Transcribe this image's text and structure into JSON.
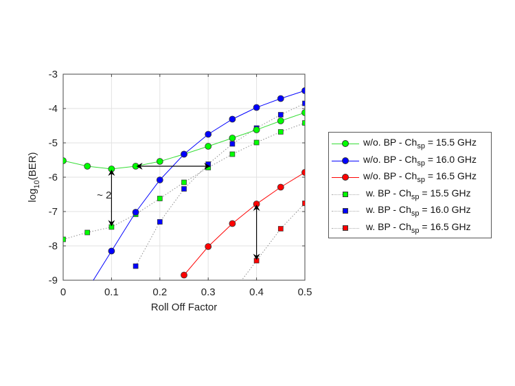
{
  "chart_data": {
    "type": "line",
    "title": "",
    "xlabel": "Roll Off Factor",
    "ylabel": "log10(BER)",
    "ylabel_main": "log",
    "ylabel_sub": "10",
    "ylabel_tail": "(BER)",
    "xlim": [
      0,
      0.5
    ],
    "ylim": [
      -9,
      -3
    ],
    "xticks": [
      "0",
      "0.1",
      "0.2",
      "0.3",
      "0.4",
      "0.5"
    ],
    "yticks": [
      "-3",
      "-4",
      "-5",
      "-6",
      "-7",
      "-8",
      "-9"
    ],
    "grid": true,
    "legend_position": "outside right",
    "series": [
      {
        "name": "w/o. BP - Chsp = 15.5 GHz",
        "label_pre": "w/o. BP - Ch",
        "label_sub": "sp",
        "label_post": " = 15.5 GHz",
        "color": "#00ff00",
        "line": "solid",
        "marker": "circle",
        "x": [
          0,
          0.05,
          0.1,
          0.15,
          0.2,
          0.25,
          0.3,
          0.35,
          0.4,
          0.45,
          0.5
        ],
        "y": [
          -5.52,
          -5.68,
          -5.76,
          -5.68,
          -5.54,
          -5.33,
          -5.1,
          -4.86,
          -4.62,
          -4.36,
          -4.12
        ]
      },
      {
        "name": "w/o. BP - Chsp = 16.0 GHz",
        "label_pre": "w/o. BP - Ch",
        "label_sub": "sp",
        "label_post": " = 16.0 GHz",
        "color": "#0000ff",
        "line": "solid",
        "marker": "circle",
        "x": [
          0.1,
          0.15,
          0.2,
          0.25,
          0.3,
          0.35,
          0.4,
          0.45,
          0.5
        ],
        "y": [
          -8.15,
          -7.02,
          -6.08,
          -5.33,
          -4.75,
          -4.31,
          -3.97,
          -3.71,
          -3.48
        ]
      },
      {
        "name": "w/o. BP - Chsp = 16.5 GHz",
        "label_pre": "w/o. BP - Ch",
        "label_sub": "sp",
        "label_post": " = 16.5 GHz",
        "color": "#ff0000",
        "line": "solid",
        "marker": "circle",
        "x": [
          0.25,
          0.3,
          0.35,
          0.4,
          0.45,
          0.5
        ],
        "y": [
          -8.85,
          -8.02,
          -7.35,
          -6.78,
          -6.29,
          -5.86
        ]
      },
      {
        "name": "w. BP - Chsp = 15.5 GHz",
        "label_pre": "w. BP - Ch",
        "label_sub": "sp",
        "label_post": " = 15.5 GHz",
        "color": "#00ff00",
        "line": "dotted",
        "marker": "square",
        "x": [
          0,
          0.05,
          0.1,
          0.15,
          0.2,
          0.25,
          0.3,
          0.35,
          0.4,
          0.45,
          0.5
        ],
        "y": [
          -7.81,
          -7.61,
          -7.45,
          -7.08,
          -6.62,
          -6.15,
          -5.72,
          -5.33,
          -4.99,
          -4.68,
          -4.42
        ]
      },
      {
        "name": "w. BP - Chsp = 16.0 GHz",
        "label_pre": "w. BP - Ch",
        "label_sub": "sp",
        "label_post": " = 16.0 GHz",
        "color": "#0000ff",
        "line": "dotted",
        "marker": "square",
        "x": [
          0.15,
          0.2,
          0.25,
          0.3,
          0.35,
          0.4,
          0.45,
          0.5
        ],
        "y": [
          -8.59,
          -7.3,
          -6.34,
          -5.62,
          -5.03,
          -4.57,
          -4.18,
          -3.85
        ]
      },
      {
        "name": "w. BP - Chsp = 16.5 GHz",
        "label_pre": "w. BP - Ch",
        "label_sub": "sp",
        "label_post": " = 16.5 GHz",
        "color": "#ff0000",
        "line": "dotted",
        "marker": "square",
        "x": [
          0.4,
          0.45,
          0.5
        ],
        "y": [
          -8.43,
          -7.5,
          -6.76
        ]
      }
    ],
    "annotations": [
      {
        "text": "~ 2",
        "x": 0.065,
        "y": -6.5
      },
      {
        "type": "double-arrow-vertical",
        "x": 0.1,
        "y1": -5.76,
        "y2": -7.45
      },
      {
        "type": "double-arrow-horizontal",
        "y": -5.68,
        "x1": 0.15,
        "x2": 0.3
      },
      {
        "type": "double-arrow-vertical",
        "x": 0.4,
        "y1": -6.78,
        "y2": -8.43
      }
    ]
  }
}
